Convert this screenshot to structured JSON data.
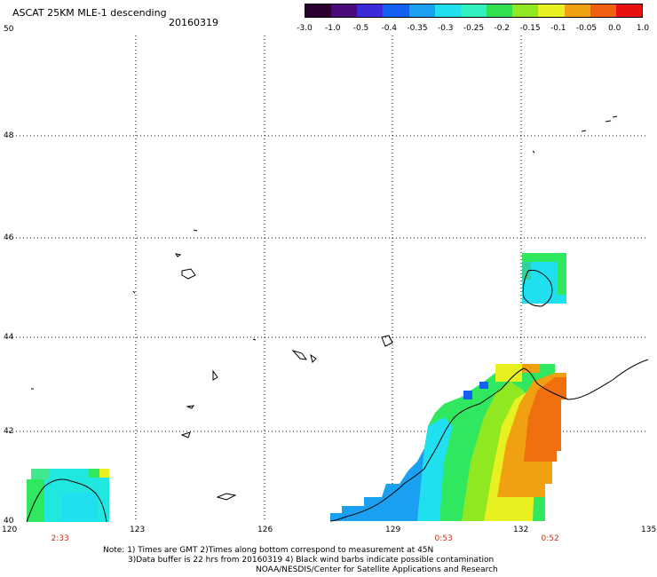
{
  "title": "ASCAT 25KM MLE-1 descending",
  "date": "20160319",
  "colorbar": {
    "labels": [
      "-3.0",
      "-1.0",
      "-0.5",
      "-0.4",
      "-0.35",
      "-0.3",
      "-0.25",
      "-0.2",
      "-0.15",
      "-0.1",
      "-0.05",
      "0.0",
      "1.0"
    ],
    "colors": [
      "#2a0030",
      "#4a0a7a",
      "#3a2ad8",
      "#1460f0",
      "#1aa0f0",
      "#20e0f0",
      "#30f0c0",
      "#30e050",
      "#90e820",
      "#e8f020",
      "#f0a010",
      "#f06010",
      "#e81010"
    ]
  },
  "axes": {
    "lon_ticks": [
      "120",
      "123",
      "126",
      "129",
      "132",
      "135"
    ],
    "lat_ticks": [
      "50",
      "48",
      "46",
      "44",
      "42",
      "40"
    ],
    "lon_range": [
      120,
      135
    ],
    "lat_range": [
      40,
      50
    ]
  },
  "times": [
    {
      "lon": 121.2,
      "label": "2:33"
    },
    {
      "lon": 130.2,
      "label": "0:53"
    },
    {
      "lon": 132.7,
      "label": "0:52"
    }
  ],
  "notes": [
    "Note: 1) Times are GMT 2)Times along bottom correspond to measurement at 45N",
    "3)Data buffer is 22 hrs from 20160319 4) Black wind barbs indicate possible contamination",
    "NOAA/NESDIS/Center for Satellite Applications and Research"
  ],
  "swaths": [
    {
      "name": "west",
      "lon": [
        120.6,
        122.3
      ],
      "lat": [
        40.0,
        41.1
      ],
      "level": "-0.3"
    },
    {
      "name": "northeast",
      "lon": [
        132.0,
        133.0
      ],
      "lat": [
        44.7,
        45.7
      ],
      "level": "-0.3"
    },
    {
      "name": "east",
      "lon": [
        127.5,
        133.0
      ],
      "lat": [
        40.0,
        43.3
      ],
      "level": "-0.2"
    }
  ]
}
